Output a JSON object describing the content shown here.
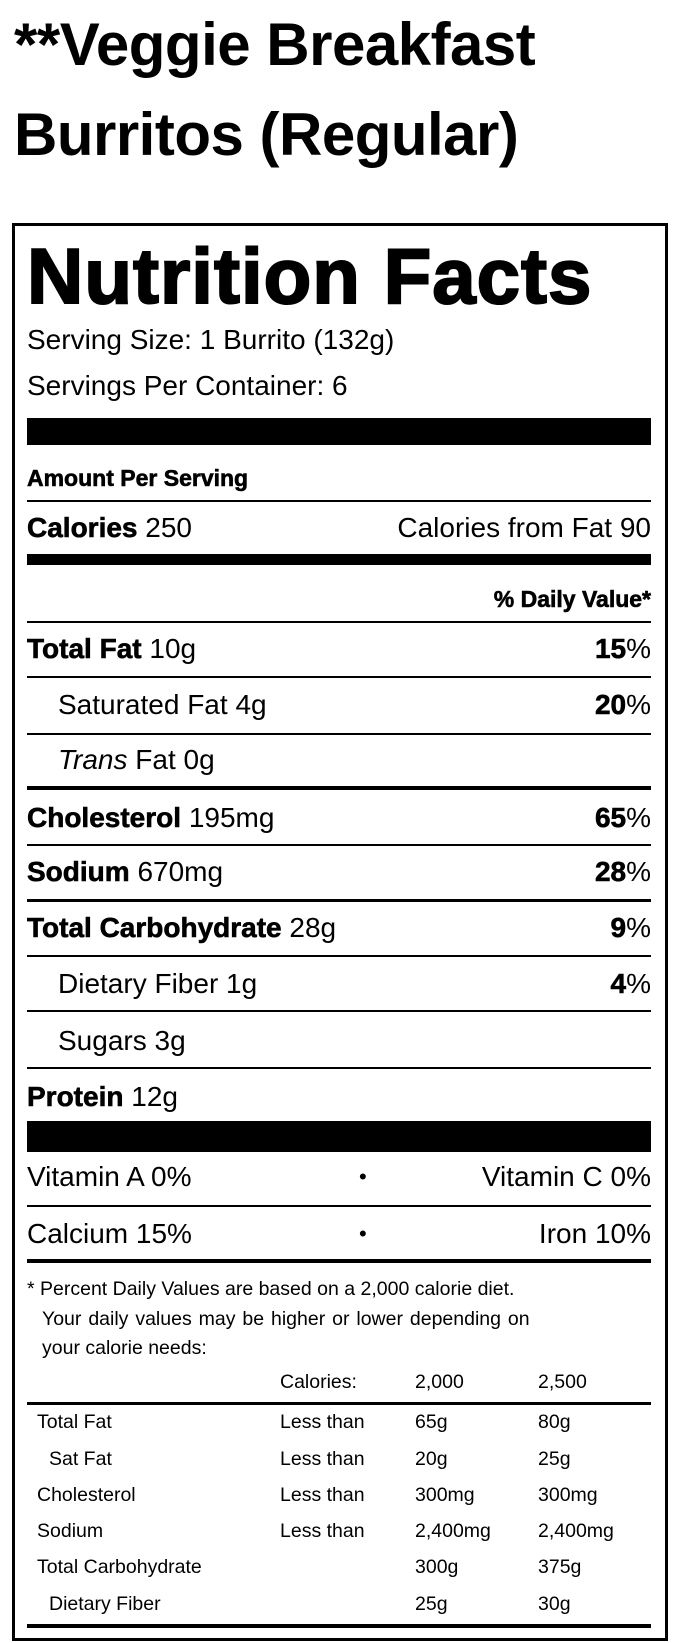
{
  "title_lines": [
    "**Veggie Breakfast",
    "Burritos (Regular)"
  ],
  "label": {
    "heading": "Nutrition Facts",
    "serving_size": "Serving Size: 1 Burrito (132g)",
    "servings_per_container": "Servings Per Container: 6",
    "amount_per_serving": "Amount Per Serving",
    "calories_label": "Calories",
    "calories_value": "250",
    "calories_from_fat": "Calories from Fat 90",
    "daily_value_header": "% Daily Value*",
    "nutrients": [
      {
        "name": "Total Fat",
        "amount": "10g",
        "dv_num": "15",
        "dv_pct": "%"
      },
      {
        "name": "Saturated Fat",
        "amount": "4g",
        "dv_num": "20",
        "dv_pct": "%"
      },
      {
        "name_italic": "Trans",
        "name": "Fat",
        "amount": "0g"
      },
      {
        "name": "Cholesterol",
        "amount": "195mg",
        "dv_num": "65",
        "dv_pct": "%"
      },
      {
        "name": "Sodium",
        "amount": "670mg",
        "dv_num": "28",
        "dv_pct": "%"
      },
      {
        "name": "Total Carbohydrate",
        "amount": "28g",
        "dv_num": "9",
        "dv_pct": "%"
      },
      {
        "name": "Dietary Fiber",
        "amount": "1g",
        "dv_num": "4",
        "dv_pct": "%"
      },
      {
        "name": "Sugars",
        "amount": "3g"
      },
      {
        "name": "Protein",
        "amount": "12g"
      }
    ],
    "vitamins": [
      {
        "left": "Vitamin A 0%",
        "right": "Vitamin C 0%"
      },
      {
        "left": "Calcium 15%",
        "right": "Iron 10%"
      }
    ],
    "footnote": [
      "* Percent Daily Values are based on a 2,000 calorie diet.",
      "Your daily values may be higher or lower depending on",
      "your calorie needs:"
    ],
    "dv_table": {
      "header": [
        "",
        "Calories:",
        "2,000",
        "2,500"
      ],
      "rows": [
        [
          "Total Fat",
          "Less than",
          "65g",
          "80g"
        ],
        [
          "Sat Fat",
          "Less than",
          "20g",
          "25g"
        ],
        [
          "Cholesterol",
          "Less than",
          "300mg",
          "300mg"
        ],
        [
          "Sodium",
          "Less than",
          "2,400mg",
          "2,400mg"
        ],
        [
          "Total Carbohydrate",
          "",
          "300g",
          "375g"
        ],
        [
          "Dietary Fiber",
          "",
          "25g",
          "30g"
        ]
      ]
    }
  }
}
